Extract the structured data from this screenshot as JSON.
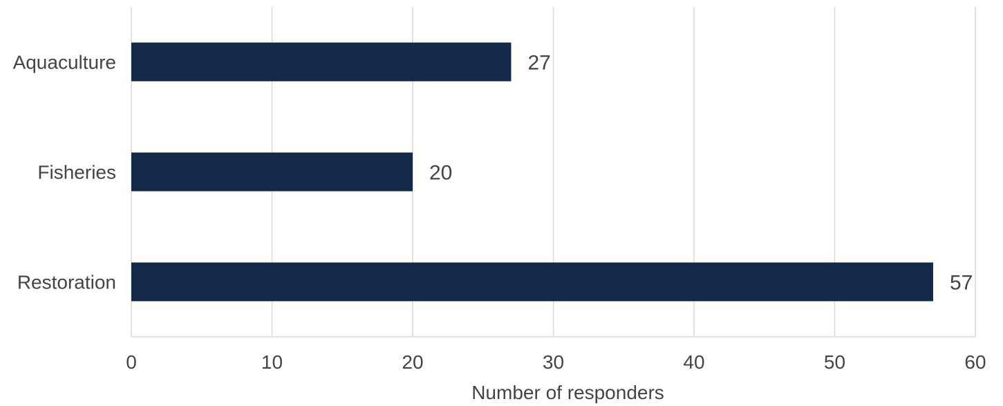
{
  "chart_data": {
    "type": "bar",
    "orientation": "horizontal",
    "categories": [
      "Aquaculture",
      "Fisheries",
      "Restoration"
    ],
    "values": [
      27,
      20,
      57
    ],
    "value_labels": [
      "27",
      "20",
      "57"
    ],
    "xlabel": "Number of responders",
    "ylabel": "",
    "xlim": [
      0,
      60
    ],
    "xticks": [
      0,
      10,
      20,
      30,
      40,
      50,
      60
    ],
    "xtick_labels": [
      "0",
      "10",
      "20",
      "30",
      "40",
      "50",
      "60"
    ],
    "grid": "vertical",
    "legend": "none",
    "colors": {
      "bar": "#13284b",
      "grid": "#d9d9d9",
      "axis": "#d9d9d9",
      "text": "#444444"
    }
  }
}
